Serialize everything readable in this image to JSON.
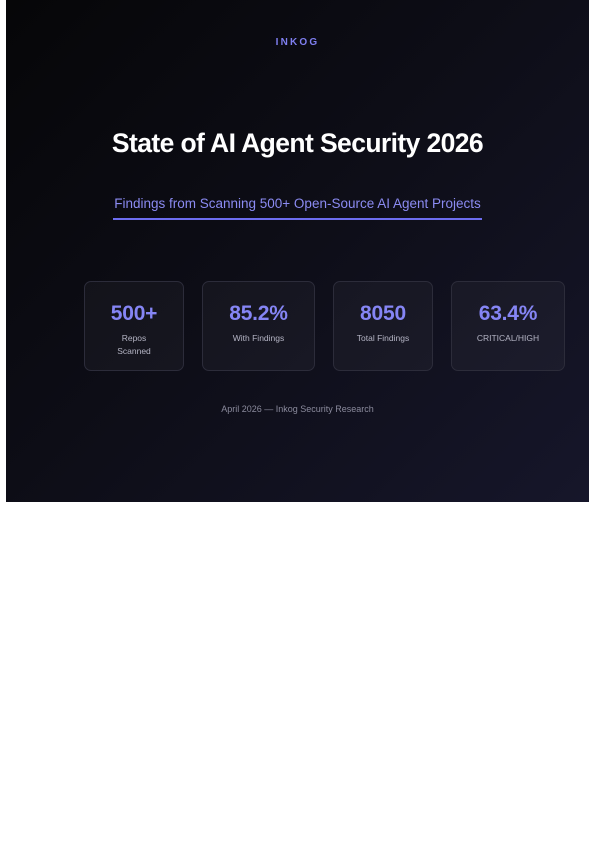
{
  "brand": "INKOG",
  "title": "State of AI Agent Security 2026",
  "subtitle": "Findings from Scanning 500+ Open-Source AI Agent Projects",
  "stats": [
    {
      "value": "500+",
      "label": "Repos Scanned"
    },
    {
      "value": "85.2%",
      "label": "With Findings"
    },
    {
      "value": "8050",
      "label": "Total Findings"
    },
    {
      "value": "63.4%",
      "label": "CRITICAL/HIGH"
    }
  ],
  "footer": "April 2026 — Inkog Security Research",
  "colors": {
    "accent": "#8585f4",
    "background": "#0a0a12",
    "title": "#ffffff"
  }
}
